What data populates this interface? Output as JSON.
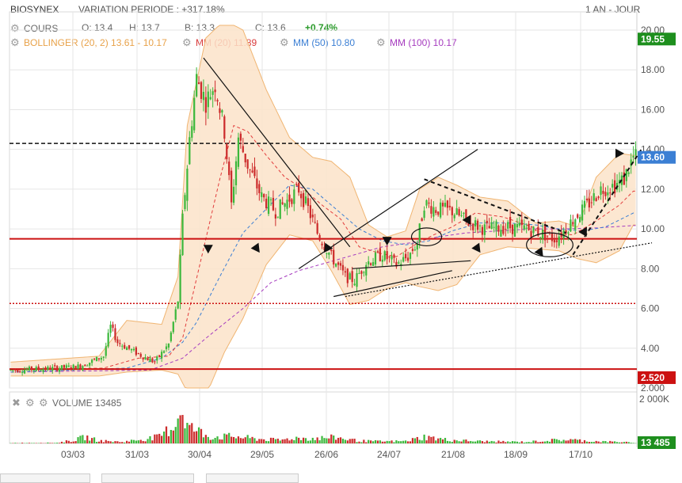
{
  "header": {
    "ticker": "BIOSYNEX",
    "variation": "VARIATION PERIODE : +317.18%",
    "period": "1 AN - JOUR"
  },
  "legend": {
    "cours": {
      "label": "COURS",
      "open": "O: 13.4",
      "high": "H: 13.7",
      "low": "B: 13.3",
      "close": "C: 13.6",
      "change": "+0.74%"
    },
    "bollinger": "BOLLINGER (20, 2)  13.61 - 10.17",
    "mm20": "MM (20)  11.89",
    "mm50": "MM (50)  10.80",
    "mm100": "MM (100)  10.17",
    "volume": "VOLUME  13485"
  },
  "colors": {
    "up": "#3cb83c",
    "down": "#cc2b2b",
    "bollinger_fill": "#fbe3c9",
    "bollinger_line": "#f0b572",
    "mm20": "#e23c3c",
    "mm50": "#3b7fd4",
    "mm100": "#a63cbf",
    "support": "#cc1111",
    "grid": "#e6e6e6"
  },
  "chart_data": [
    {
      "type": "candlestick",
      "x_ticks": [
        "03/03",
        "31/03",
        "30/04",
        "29/05",
        "26/06",
        "24/07",
        "21/08",
        "18/09",
        "17/10"
      ],
      "y_ticks": [
        "20.00",
        "18.00",
        "16.00",
        "14.00",
        "12.00",
        "10.00",
        "8.00",
        "6.00",
        "4.00",
        "2.000"
      ],
      "ylim": [
        2,
        20
      ],
      "grid": true,
      "price_tags": [
        {
          "label": "19.55",
          "value": 19.55,
          "color": "#1e8f1e"
        },
        {
          "label": "13.60",
          "value": 13.6,
          "color": "#3b7fd4"
        },
        {
          "label": "2.520",
          "value": 2.52,
          "color": "#cc1111"
        }
      ],
      "horizontal_lines": [
        {
          "value": 14.3,
          "style": "dashed",
          "color": "#111111"
        },
        {
          "value": 9.5,
          "style": "solid",
          "color": "#cc1111"
        },
        {
          "value": 6.25,
          "style": "dotted",
          "color": "#cc1111"
        },
        {
          "value": 2.95,
          "style": "solid",
          "color": "#cc1111"
        }
      ],
      "anchors": [
        [
          0,
          2.9,
          2.9
        ],
        [
          20,
          3.0,
          3.05
        ],
        [
          30,
          3.1,
          3.1
        ],
        [
          40,
          3.6,
          3.6
        ],
        [
          43,
          5.1,
          5.1
        ],
        [
          46,
          4.3,
          4.3
        ],
        [
          55,
          3.7,
          3.7
        ],
        [
          62,
          3.3,
          3.3
        ],
        [
          68,
          4.2,
          4.2
        ],
        [
          72,
          6.4,
          6.4
        ],
        [
          74,
          10.5,
          10.5
        ],
        [
          77,
          14.5,
          14.5
        ],
        [
          80,
          17.6,
          17.6
        ],
        [
          84,
          16.4,
          16.4
        ],
        [
          88,
          17.3,
          17.3
        ],
        [
          92,
          14.9,
          14.9
        ],
        [
          95,
          11.2,
          11.2
        ],
        [
          98,
          14.6,
          14.6
        ],
        [
          102,
          13.2,
          13.2
        ],
        [
          108,
          11.6,
          11.6
        ],
        [
          114,
          10.9,
          10.9
        ],
        [
          118,
          11.3,
          11.3
        ],
        [
          124,
          12.0,
          12.0
        ],
        [
          128,
          11.0,
          11.0
        ],
        [
          132,
          9.8,
          9.8
        ],
        [
          138,
          8.6,
          8.6
        ],
        [
          144,
          7.6,
          7.6
        ],
        [
          148,
          7.4,
          7.4
        ],
        [
          153,
          8.3,
          8.3
        ],
        [
          160,
          8.7,
          8.7
        ],
        [
          166,
          8.2,
          8.2
        ],
        [
          171,
          8.6,
          8.6
        ],
        [
          175,
          9.3,
          9.3
        ],
        [
          178,
          11.3,
          11.3
        ],
        [
          183,
          11.0,
          11.0
        ],
        [
          190,
          10.9,
          10.9
        ],
        [
          196,
          10.4,
          10.4
        ],
        [
          204,
          10.0,
          10.0
        ],
        [
          214,
          10.1,
          10.1
        ],
        [
          222,
          10.0,
          10.0
        ],
        [
          228,
          9.8,
          9.8
        ],
        [
          234,
          9.5,
          9.5
        ],
        [
          238,
          9.9,
          9.9
        ],
        [
          243,
          10.6,
          10.6
        ],
        [
          249,
          11.3,
          11.3
        ],
        [
          254,
          12.0,
          12.0
        ],
        [
          260,
          12.2,
          12.2
        ],
        [
          264,
          12.5,
          12.5
        ],
        [
          266,
          13.1,
          13.1
        ],
        [
          268,
          13.6,
          13.6
        ]
      ],
      "bollinger_anchors": [
        [
          0,
          3.3,
          2.6
        ],
        [
          38,
          3.6,
          2.6
        ],
        [
          50,
          5.4,
          2.8
        ],
        [
          65,
          5.2,
          2.9
        ],
        [
          72,
          7.6,
          2.7
        ],
        [
          76,
          15.2,
          1.8
        ],
        [
          84,
          19.6,
          1.6
        ],
        [
          92,
          20.5,
          3.8
        ],
        [
          100,
          20.0,
          5.5
        ],
        [
          110,
          17.0,
          8.2
        ],
        [
          120,
          14.6,
          9.7
        ],
        [
          130,
          13.6,
          9.4
        ],
        [
          138,
          13.4,
          7.9
        ],
        [
          146,
          12.6,
          6.2
        ],
        [
          154,
          10.2,
          6.4
        ],
        [
          162,
          9.6,
          7.0
        ],
        [
          170,
          9.9,
          7.3
        ],
        [
          176,
          12.0,
          7.1
        ],
        [
          184,
          12.6,
          6.9
        ],
        [
          192,
          12.2,
          7.2
        ],
        [
          202,
          11.6,
          8.7
        ],
        [
          214,
          11.4,
          9.1
        ],
        [
          226,
          10.3,
          9.0
        ],
        [
          236,
          10.4,
          8.9
        ],
        [
          244,
          10.1,
          8.5
        ],
        [
          252,
          12.6,
          8.3
        ],
        [
          262,
          13.8,
          8.9
        ],
        [
          268,
          13.7,
          10.2
        ]
      ],
      "mm20_anchors": [
        [
          0,
          2.9
        ],
        [
          40,
          3.0
        ],
        [
          55,
          3.5
        ],
        [
          68,
          3.6
        ],
        [
          74,
          4.5
        ],
        [
          78,
          6.5
        ],
        [
          84,
          9.5
        ],
        [
          90,
          12.5
        ],
        [
          96,
          15.2
        ],
        [
          102,
          14.9
        ],
        [
          110,
          13.7
        ],
        [
          118,
          12.6
        ],
        [
          126,
          12.0
        ],
        [
          134,
          11.2
        ],
        [
          142,
          10.5
        ],
        [
          150,
          9.1
        ],
        [
          158,
          8.8
        ],
        [
          166,
          8.6
        ],
        [
          174,
          9.2
        ],
        [
          182,
          9.7
        ],
        [
          190,
          10.1
        ],
        [
          200,
          10.8
        ],
        [
          212,
          10.6
        ],
        [
          222,
          10.2
        ],
        [
          232,
          9.8
        ],
        [
          242,
          9.7
        ],
        [
          252,
          10.4
        ],
        [
          262,
          11.2
        ],
        [
          268,
          11.9
        ]
      ],
      "mm50_anchors": [
        [
          0,
          2.8
        ],
        [
          50,
          3.0
        ],
        [
          65,
          3.5
        ],
        [
          74,
          4.3
        ],
        [
          80,
          5.3
        ],
        [
          90,
          7.6
        ],
        [
          100,
          9.8
        ],
        [
          110,
          11.0
        ],
        [
          120,
          12.2
        ],
        [
          130,
          12.0
        ],
        [
          140,
          11.0
        ],
        [
          150,
          10.0
        ],
        [
          160,
          9.4
        ],
        [
          170,
          9.2
        ],
        [
          180,
          9.4
        ],
        [
          190,
          9.9
        ],
        [
          202,
          10.3
        ],
        [
          214,
          10.3
        ],
        [
          226,
          10.2
        ],
        [
          236,
          10.0
        ],
        [
          246,
          9.9
        ],
        [
          256,
          10.1
        ],
        [
          268,
          10.8
        ]
      ],
      "mm100_anchors": [
        [
          0,
          2.8
        ],
        [
          60,
          2.9
        ],
        [
          74,
          3.5
        ],
        [
          84,
          4.5
        ],
        [
          100,
          6.0
        ],
        [
          112,
          7.3
        ],
        [
          124,
          7.9
        ],
        [
          136,
          8.3
        ],
        [
          148,
          8.7
        ],
        [
          160,
          9.1
        ],
        [
          172,
          9.3
        ],
        [
          184,
          9.6
        ],
        [
          196,
          9.8
        ],
        [
          210,
          9.9
        ],
        [
          224,
          10.0
        ],
        [
          238,
          10.0
        ],
        [
          252,
          10.05
        ],
        [
          268,
          10.17
        ]
      ],
      "trendlines": [
        {
          "from": [
            83,
            18.6
          ],
          "to": [
            146,
            9.1
          ],
          "style": "solid"
        },
        {
          "from": [
            124,
            8.0
          ],
          "to": [
            201,
            14.0
          ],
          "style": "solid"
        },
        {
          "from": [
            139,
            6.6
          ],
          "to": [
            190,
            7.9
          ],
          "style": "solid"
        },
        {
          "from": [
            147,
            8.0
          ],
          "to": [
            198,
            8.4
          ],
          "style": "solid"
        },
        {
          "from": [
            144,
            6.6
          ],
          "to": [
            276,
            9.3
          ],
          "style": "dotted"
        },
        {
          "from": [
            178,
            12.5
          ],
          "to": [
            239,
            9.8
          ],
          "style": "dashed"
        },
        {
          "from": [
            242,
            8.7
          ],
          "to": [
            272,
            14.1
          ],
          "style": "dashed"
        }
      ],
      "arrows": [
        {
          "x": 85,
          "y": 9.0,
          "dir": "down"
        },
        {
          "x": 106,
          "y": 9.0,
          "dir": "down-right"
        },
        {
          "x": 136,
          "y": 9.0,
          "dir": "down-left"
        },
        {
          "x": 162,
          "y": 9.4,
          "dir": "down"
        },
        {
          "x": 201,
          "y": 9.0,
          "dir": "down-right"
        },
        {
          "x": 228,
          "y": 8.8,
          "dir": "down-right"
        },
        {
          "x": 247,
          "y": 9.9,
          "dir": "up-right"
        },
        {
          "x": 262,
          "y": 13.8,
          "dir": "right"
        },
        {
          "x": 197,
          "y": 10.5,
          "dir": "up-right"
        }
      ],
      "ellipses": [
        {
          "x": 179,
          "y": 9.6,
          "rx": 6.5,
          "ry": 0.45
        },
        {
          "x": 232,
          "y": 9.2,
          "rx": 10,
          "ry": 0.6
        }
      ]
    },
    {
      "type": "bar",
      "title": "VOLUME",
      "y_ticks": [
        "2 000K"
      ],
      "ymax": 2000,
      "price_tag": {
        "label": "13 485",
        "value": 13.485,
        "color": "#1e8f1e"
      },
      "volume_anchors": [
        [
          0,
          18
        ],
        [
          20,
          25
        ],
        [
          28,
          140
        ],
        [
          32,
          260
        ],
        [
          38,
          110
        ],
        [
          48,
          60
        ],
        [
          58,
          180
        ],
        [
          64,
          260
        ],
        [
          70,
          700
        ],
        [
          72,
          1100
        ],
        [
          74,
          1400
        ],
        [
          76,
          700
        ],
        [
          80,
          520
        ],
        [
          86,
          260
        ],
        [
          96,
          280
        ],
        [
          106,
          180
        ],
        [
          116,
          130
        ],
        [
          122,
          220
        ],
        [
          130,
          200
        ],
        [
          140,
          240
        ],
        [
          150,
          100
        ],
        [
          160,
          80
        ],
        [
          170,
          90
        ],
        [
          178,
          260
        ],
        [
          188,
          140
        ],
        [
          200,
          90
        ],
        [
          212,
          70
        ],
        [
          222,
          60
        ],
        [
          232,
          120
        ],
        [
          240,
          150
        ],
        [
          248,
          100
        ],
        [
          256,
          70
        ],
        [
          264,
          60
        ],
        [
          268,
          13
        ]
      ]
    }
  ]
}
